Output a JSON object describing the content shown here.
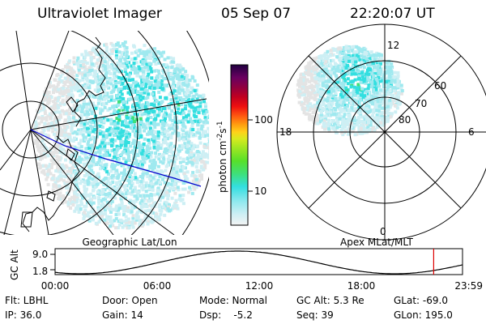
{
  "header": {
    "instrument": "Ultraviolet Imager",
    "date": "05 Sep 07",
    "time": "22:20:07 UT"
  },
  "colors": {
    "aurora_cyan": "#33dfe0",
    "aurora_green": "#3ee07a",
    "aurora_light": "#cdeff4",
    "ground_track": "#0000cc",
    "marker": "#dd0000"
  },
  "left_map": {
    "caption": "Geographic Lat/Lon"
  },
  "colorbar": {
    "unit_label": "photon cm",
    "unit_sup1": "-2",
    "unit_s": "s",
    "unit_sup2": "-1",
    "ticks": [
      "100",
      "10"
    ]
  },
  "polar_plot": {
    "caption": "Apex MLat/MLT",
    "lat_labels": [
      "60",
      "70",
      "80"
    ],
    "mlt_labels": {
      "top": "12",
      "left": "18",
      "right": "6",
      "bottom": "0"
    }
  },
  "altitude_plot": {
    "ylabel": "GC Alt",
    "yticks": [
      "9.0",
      "1.8"
    ],
    "xticks": [
      "00:00",
      "06:00",
      "12:00",
      "18:00",
      "23:59"
    ],
    "current_time_hours": 22.3
  },
  "status": {
    "row1": {
      "filter": "Flt: LBHL",
      "door": "Door: Open",
      "mode": "Mode: Normal",
      "gc_alt": "GC Alt: 5.3 Re",
      "glat": "GLat: -69.0"
    },
    "row2": {
      "ip": "IP: 36.0",
      "gain": "Gain: 14",
      "dsp": "Dsp:    -5.2",
      "seq": "Seq: 39",
      "glon": "GLon: 195.0"
    }
  }
}
